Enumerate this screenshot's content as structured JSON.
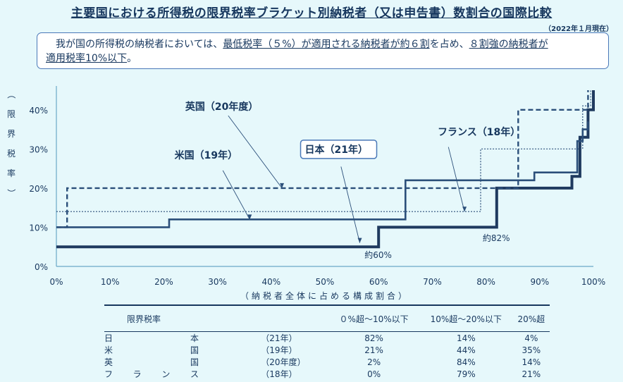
{
  "title": "主要国における所得税の限界税率ブラケット別納税者（又は申告書）数割合の国際比較",
  "date_note": "（2022年１月現在）",
  "summary": {
    "part1": "我が国の所得税の納税者においては、",
    "part2": "最低税率（５%）が適用される納税者が約６割",
    "part3": "を占め、",
    "part4": "８割強の納税者が",
    "part5": "適用税率10%以下",
    "part6": "。"
  },
  "colors": {
    "japan": "#1f3a5f",
    "us": "#2b4f7a",
    "uk": "#2b4f7a",
    "france": "#2b4f7a",
    "axis": "#6aa8c8"
  },
  "chart_data": {
    "type": "line",
    "step": true,
    "title": "",
    "xlabel": "（納税者全体に占める構成割合）",
    "ylabel": "（限界税率）",
    "xlim": [
      0,
      100
    ],
    "ylim": [
      0,
      45
    ],
    "x_ticks": [
      "0%",
      "10%",
      "20%",
      "30%",
      "40%",
      "50%",
      "60%",
      "70%",
      "80%",
      "90%",
      "100%"
    ],
    "y_ticks": [
      "0%",
      "10%",
      "20%",
      "30%",
      "40%"
    ],
    "series": [
      {
        "name": "日本（21年）",
        "style": "thick",
        "points": [
          [
            0,
            5
          ],
          [
            60,
            5
          ],
          [
            60,
            10
          ],
          [
            82,
            10
          ],
          [
            82,
            20
          ],
          [
            96,
            20
          ],
          [
            96,
            23
          ],
          [
            97.5,
            23
          ],
          [
            97.5,
            33
          ],
          [
            99,
            33
          ],
          [
            99,
            40
          ],
          [
            100,
            40
          ],
          [
            100,
            45
          ]
        ]
      },
      {
        "name": "米国（19年）",
        "style": "medium",
        "points": [
          [
            0,
            10
          ],
          [
            21,
            10
          ],
          [
            21,
            12
          ],
          [
            65,
            12
          ],
          [
            65,
            22
          ],
          [
            89,
            22
          ],
          [
            89,
            24
          ],
          [
            97,
            24
          ],
          [
            97,
            32
          ],
          [
            98,
            32
          ],
          [
            98,
            35
          ],
          [
            99,
            35
          ],
          [
            99,
            37
          ]
        ]
      },
      {
        "name": "英国（20年度）",
        "style": "dashed",
        "points": [
          [
            0,
            10
          ],
          [
            2,
            10
          ],
          [
            2,
            20
          ],
          [
            86,
            20
          ],
          [
            86,
            40
          ],
          [
            99,
            40
          ],
          [
            99,
            45
          ]
        ]
      },
      {
        "name": "フランス（18年）",
        "style": "dotted",
        "points": [
          [
            0,
            14
          ],
          [
            79,
            14
          ],
          [
            79,
            30
          ],
          [
            98,
            30
          ],
          [
            98,
            41
          ],
          [
            99.5,
            41
          ],
          [
            99.5,
            45
          ]
        ]
      }
    ],
    "annotations": [
      {
        "text": "英国（20年度）",
        "x": 24,
        "y": 40
      },
      {
        "text": "米国（19年）",
        "x": 22,
        "y": 27.5
      },
      {
        "text": "日本（21年）",
        "x": 46,
        "y": 29
      },
      {
        "text": "フランス（18年）",
        "x": 71,
        "y": 33.5
      },
      {
        "text": "約60%",
        "x": 60,
        "y": 2.2
      },
      {
        "text": "約82%",
        "x": 82,
        "y": 6.5
      }
    ]
  },
  "table": {
    "header": [
      "限界税率",
      "０%超～10%以下",
      "10%超～20%以下",
      "20%超"
    ],
    "rows": [
      {
        "name_chars": [
          "日",
          "本"
        ],
        "year": "（21年）",
        "v1": "82%",
        "v2": "14%",
        "v3": "4%"
      },
      {
        "name_chars": [
          "米",
          "国"
        ],
        "year": "（19年）",
        "v1": "21%",
        "v2": "44%",
        "v3": "35%"
      },
      {
        "name_chars": [
          "英",
          "国"
        ],
        "year": "（20年度）",
        "v1": "2%",
        "v2": "84%",
        "v3": "14%"
      },
      {
        "name_chars": [
          "フ",
          "ラ",
          "ン",
          "ス"
        ],
        "year": "（18年）",
        "v1": "0%",
        "v2": "79%",
        "v3": "21%"
      }
    ]
  }
}
